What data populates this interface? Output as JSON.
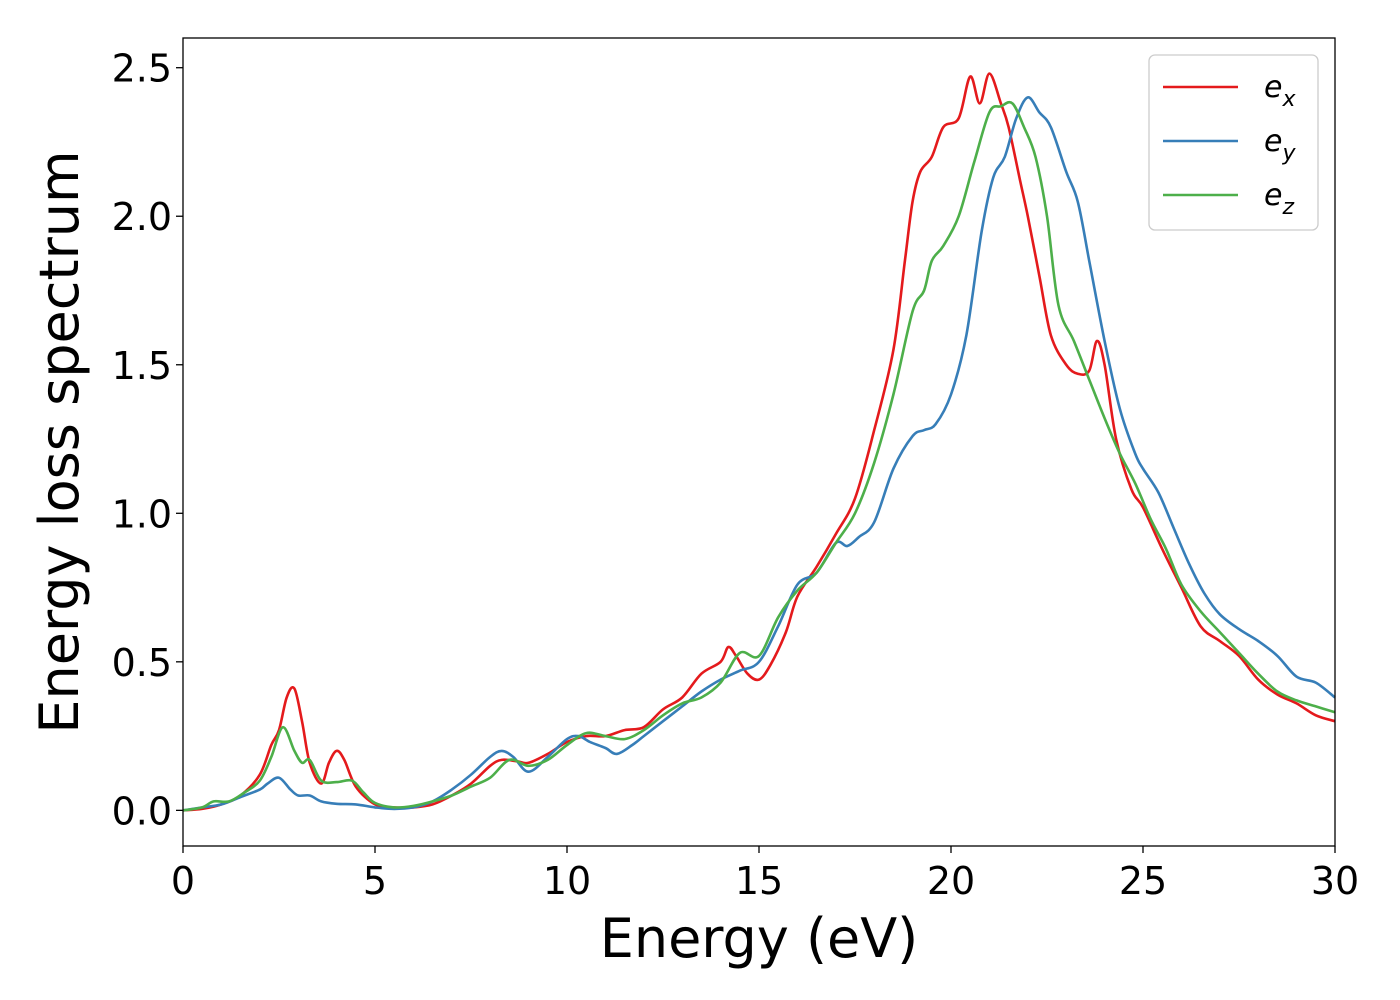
{
  "chart_data": {
    "type": "line",
    "title": "",
    "xlabel": "Energy (eV)",
    "ylabel": "Energy loss spectrum",
    "xlim": [
      0,
      30
    ],
    "ylim": [
      -0.12,
      2.6
    ],
    "xticks": [
      0,
      5,
      10,
      15,
      20,
      25,
      30
    ],
    "xtick_labels": [
      "0",
      "5",
      "10",
      "15",
      "20",
      "25",
      "30"
    ],
    "yticks": [
      0.0,
      0.5,
      1.0,
      1.5,
      2.0,
      2.5
    ],
    "ytick_labels": [
      "0.0",
      "0.5",
      "1.0",
      "1.5",
      "2.0",
      "2.5"
    ],
    "grid": false,
    "legend_position": "top-right",
    "series": [
      {
        "name": "e_x",
        "legend_base": "e",
        "legend_sub": "x",
        "color": "#e41a1c",
        "points": [
          [
            0,
            0
          ],
          [
            0.5,
            0.005
          ],
          [
            1,
            0.02
          ],
          [
            1.5,
            0.05
          ],
          [
            2,
            0.12
          ],
          [
            2.3,
            0.22
          ],
          [
            2.5,
            0.27
          ],
          [
            2.7,
            0.38
          ],
          [
            2.9,
            0.41
          ],
          [
            3.1,
            0.3
          ],
          [
            3.3,
            0.16
          ],
          [
            3.6,
            0.09
          ],
          [
            3.8,
            0.16
          ],
          [
            4.0,
            0.2
          ],
          [
            4.2,
            0.17
          ],
          [
            4.5,
            0.08
          ],
          [
            5,
            0.02
          ],
          [
            5.5,
            0.01
          ],
          [
            6,
            0.01
          ],
          [
            6.5,
            0.02
          ],
          [
            7,
            0.05
          ],
          [
            7.5,
            0.09
          ],
          [
            8,
            0.15
          ],
          [
            8.3,
            0.17
          ],
          [
            8.7,
            0.165
          ],
          [
            9.0,
            0.16
          ],
          [
            9.5,
            0.19
          ],
          [
            10,
            0.23
          ],
          [
            10.5,
            0.25
          ],
          [
            11,
            0.25
          ],
          [
            11.5,
            0.27
          ],
          [
            12,
            0.28
          ],
          [
            12.5,
            0.34
          ],
          [
            13,
            0.38
          ],
          [
            13.5,
            0.46
          ],
          [
            14,
            0.5
          ],
          [
            14.2,
            0.55
          ],
          [
            14.4,
            0.52
          ],
          [
            14.7,
            0.46
          ],
          [
            15,
            0.44
          ],
          [
            15.3,
            0.49
          ],
          [
            15.7,
            0.6
          ],
          [
            16,
            0.72
          ],
          [
            16.5,
            0.82
          ],
          [
            17,
            0.93
          ],
          [
            17.5,
            1.05
          ],
          [
            18,
            1.28
          ],
          [
            18.5,
            1.55
          ],
          [
            18.8,
            1.85
          ],
          [
            19,
            2.05
          ],
          [
            19.2,
            2.15
          ],
          [
            19.5,
            2.2
          ],
          [
            19.8,
            2.3
          ],
          [
            20.2,
            2.33
          ],
          [
            20.5,
            2.47
          ],
          [
            20.75,
            2.38
          ],
          [
            21,
            2.48
          ],
          [
            21.3,
            2.38
          ],
          [
            21.5,
            2.3
          ],
          [
            21.8,
            2.12
          ],
          [
            22,
            2.0
          ],
          [
            22.3,
            1.8
          ],
          [
            22.6,
            1.6
          ],
          [
            23,
            1.5
          ],
          [
            23.3,
            1.47
          ],
          [
            23.6,
            1.48
          ],
          [
            23.8,
            1.58
          ],
          [
            24,
            1.5
          ],
          [
            24.3,
            1.25
          ],
          [
            24.7,
            1.08
          ],
          [
            25,
            1.02
          ],
          [
            25.5,
            0.88
          ],
          [
            26,
            0.75
          ],
          [
            26.5,
            0.62
          ],
          [
            27,
            0.57
          ],
          [
            27.5,
            0.52
          ],
          [
            28,
            0.44
          ],
          [
            28.5,
            0.39
          ],
          [
            29,
            0.36
          ],
          [
            29.5,
            0.32
          ],
          [
            30,
            0.3
          ]
        ]
      },
      {
        "name": "e_y",
        "legend_base": "e",
        "legend_sub": "y",
        "color": "#377eb8",
        "points": [
          [
            0,
            0
          ],
          [
            0.5,
            0.01
          ],
          [
            1,
            0.02
          ],
          [
            1.5,
            0.045
          ],
          [
            2,
            0.07
          ],
          [
            2.2,
            0.09
          ],
          [
            2.5,
            0.11
          ],
          [
            2.8,
            0.07
          ],
          [
            3,
            0.05
          ],
          [
            3.3,
            0.05
          ],
          [
            3.6,
            0.03
          ],
          [
            4,
            0.022
          ],
          [
            4.5,
            0.02
          ],
          [
            5,
            0.01
          ],
          [
            5.5,
            0.005
          ],
          [
            6,
            0.01
          ],
          [
            6.5,
            0.03
          ],
          [
            7,
            0.07
          ],
          [
            7.5,
            0.12
          ],
          [
            8,
            0.18
          ],
          [
            8.3,
            0.2
          ],
          [
            8.6,
            0.18
          ],
          [
            9,
            0.13
          ],
          [
            9.5,
            0.18
          ],
          [
            10,
            0.24
          ],
          [
            10.3,
            0.25
          ],
          [
            10.6,
            0.23
          ],
          [
            11,
            0.21
          ],
          [
            11.3,
            0.19
          ],
          [
            11.7,
            0.22
          ],
          [
            12,
            0.25
          ],
          [
            12.5,
            0.3
          ],
          [
            13,
            0.35
          ],
          [
            13.5,
            0.4
          ],
          [
            14,
            0.44
          ],
          [
            14.5,
            0.47
          ],
          [
            15,
            0.5
          ],
          [
            15.5,
            0.62
          ],
          [
            16,
            0.76
          ],
          [
            16.5,
            0.8
          ],
          [
            17,
            0.9
          ],
          [
            17.3,
            0.89
          ],
          [
            17.6,
            0.92
          ],
          [
            18,
            0.97
          ],
          [
            18.5,
            1.15
          ],
          [
            19,
            1.26
          ],
          [
            19.3,
            1.28
          ],
          [
            19.6,
            1.3
          ],
          [
            20,
            1.4
          ],
          [
            20.4,
            1.6
          ],
          [
            20.8,
            1.95
          ],
          [
            21.1,
            2.13
          ],
          [
            21.4,
            2.2
          ],
          [
            21.7,
            2.33
          ],
          [
            22,
            2.4
          ],
          [
            22.3,
            2.35
          ],
          [
            22.6,
            2.3
          ],
          [
            23,
            2.15
          ],
          [
            23.3,
            2.05
          ],
          [
            23.6,
            1.85
          ],
          [
            24,
            1.58
          ],
          [
            24.4,
            1.35
          ],
          [
            24.8,
            1.2
          ],
          [
            25,
            1.15
          ],
          [
            25.4,
            1.07
          ],
          [
            25.8,
            0.95
          ],
          [
            26.2,
            0.83
          ],
          [
            26.6,
            0.73
          ],
          [
            27,
            0.66
          ],
          [
            27.5,
            0.61
          ],
          [
            28,
            0.57
          ],
          [
            28.5,
            0.52
          ],
          [
            29,
            0.45
          ],
          [
            29.5,
            0.43
          ],
          [
            30,
            0.38
          ]
        ]
      },
      {
        "name": "e_z",
        "legend_base": "e",
        "legend_sub": "z",
        "color": "#4daf4a",
        "points": [
          [
            0,
            0
          ],
          [
            0.5,
            0.01
          ],
          [
            0.8,
            0.03
          ],
          [
            1.2,
            0.03
          ],
          [
            1.6,
            0.06
          ],
          [
            2,
            0.1
          ],
          [
            2.3,
            0.18
          ],
          [
            2.6,
            0.28
          ],
          [
            2.9,
            0.2
          ],
          [
            3.1,
            0.16
          ],
          [
            3.3,
            0.17
          ],
          [
            3.6,
            0.1
          ],
          [
            4,
            0.095
          ],
          [
            4.4,
            0.1
          ],
          [
            4.7,
            0.06
          ],
          [
            5,
            0.025
          ],
          [
            5.5,
            0.01
          ],
          [
            6,
            0.015
          ],
          [
            6.5,
            0.03
          ],
          [
            7,
            0.05
          ],
          [
            7.5,
            0.08
          ],
          [
            8,
            0.11
          ],
          [
            8.5,
            0.17
          ],
          [
            9,
            0.15
          ],
          [
            9.5,
            0.17
          ],
          [
            10,
            0.22
          ],
          [
            10.5,
            0.26
          ],
          [
            11,
            0.25
          ],
          [
            11.5,
            0.24
          ],
          [
            12,
            0.27
          ],
          [
            12.5,
            0.32
          ],
          [
            13,
            0.36
          ],
          [
            13.5,
            0.38
          ],
          [
            14,
            0.43
          ],
          [
            14.5,
            0.53
          ],
          [
            15,
            0.52
          ],
          [
            15.5,
            0.65
          ],
          [
            16,
            0.74
          ],
          [
            16.5,
            0.8
          ],
          [
            17,
            0.9
          ],
          [
            17.5,
            1.0
          ],
          [
            18,
            1.17
          ],
          [
            18.5,
            1.4
          ],
          [
            19,
            1.68
          ],
          [
            19.3,
            1.75
          ],
          [
            19.5,
            1.85
          ],
          [
            19.8,
            1.9
          ],
          [
            20.2,
            2.0
          ],
          [
            20.6,
            2.18
          ],
          [
            21,
            2.35
          ],
          [
            21.3,
            2.37
          ],
          [
            21.6,
            2.38
          ],
          [
            21.9,
            2.3
          ],
          [
            22.2,
            2.2
          ],
          [
            22.5,
            2.0
          ],
          [
            22.8,
            1.7
          ],
          [
            23.2,
            1.58
          ],
          [
            23.6,
            1.45
          ],
          [
            24,
            1.32
          ],
          [
            24.4,
            1.2
          ],
          [
            24.8,
            1.1
          ],
          [
            25.2,
            0.98
          ],
          [
            25.6,
            0.88
          ],
          [
            26,
            0.76
          ],
          [
            26.5,
            0.67
          ],
          [
            27,
            0.6
          ],
          [
            27.5,
            0.53
          ],
          [
            28,
            0.46
          ],
          [
            28.5,
            0.4
          ],
          [
            29,
            0.37
          ],
          [
            29.5,
            0.35
          ],
          [
            30,
            0.33
          ]
        ]
      }
    ]
  }
}
